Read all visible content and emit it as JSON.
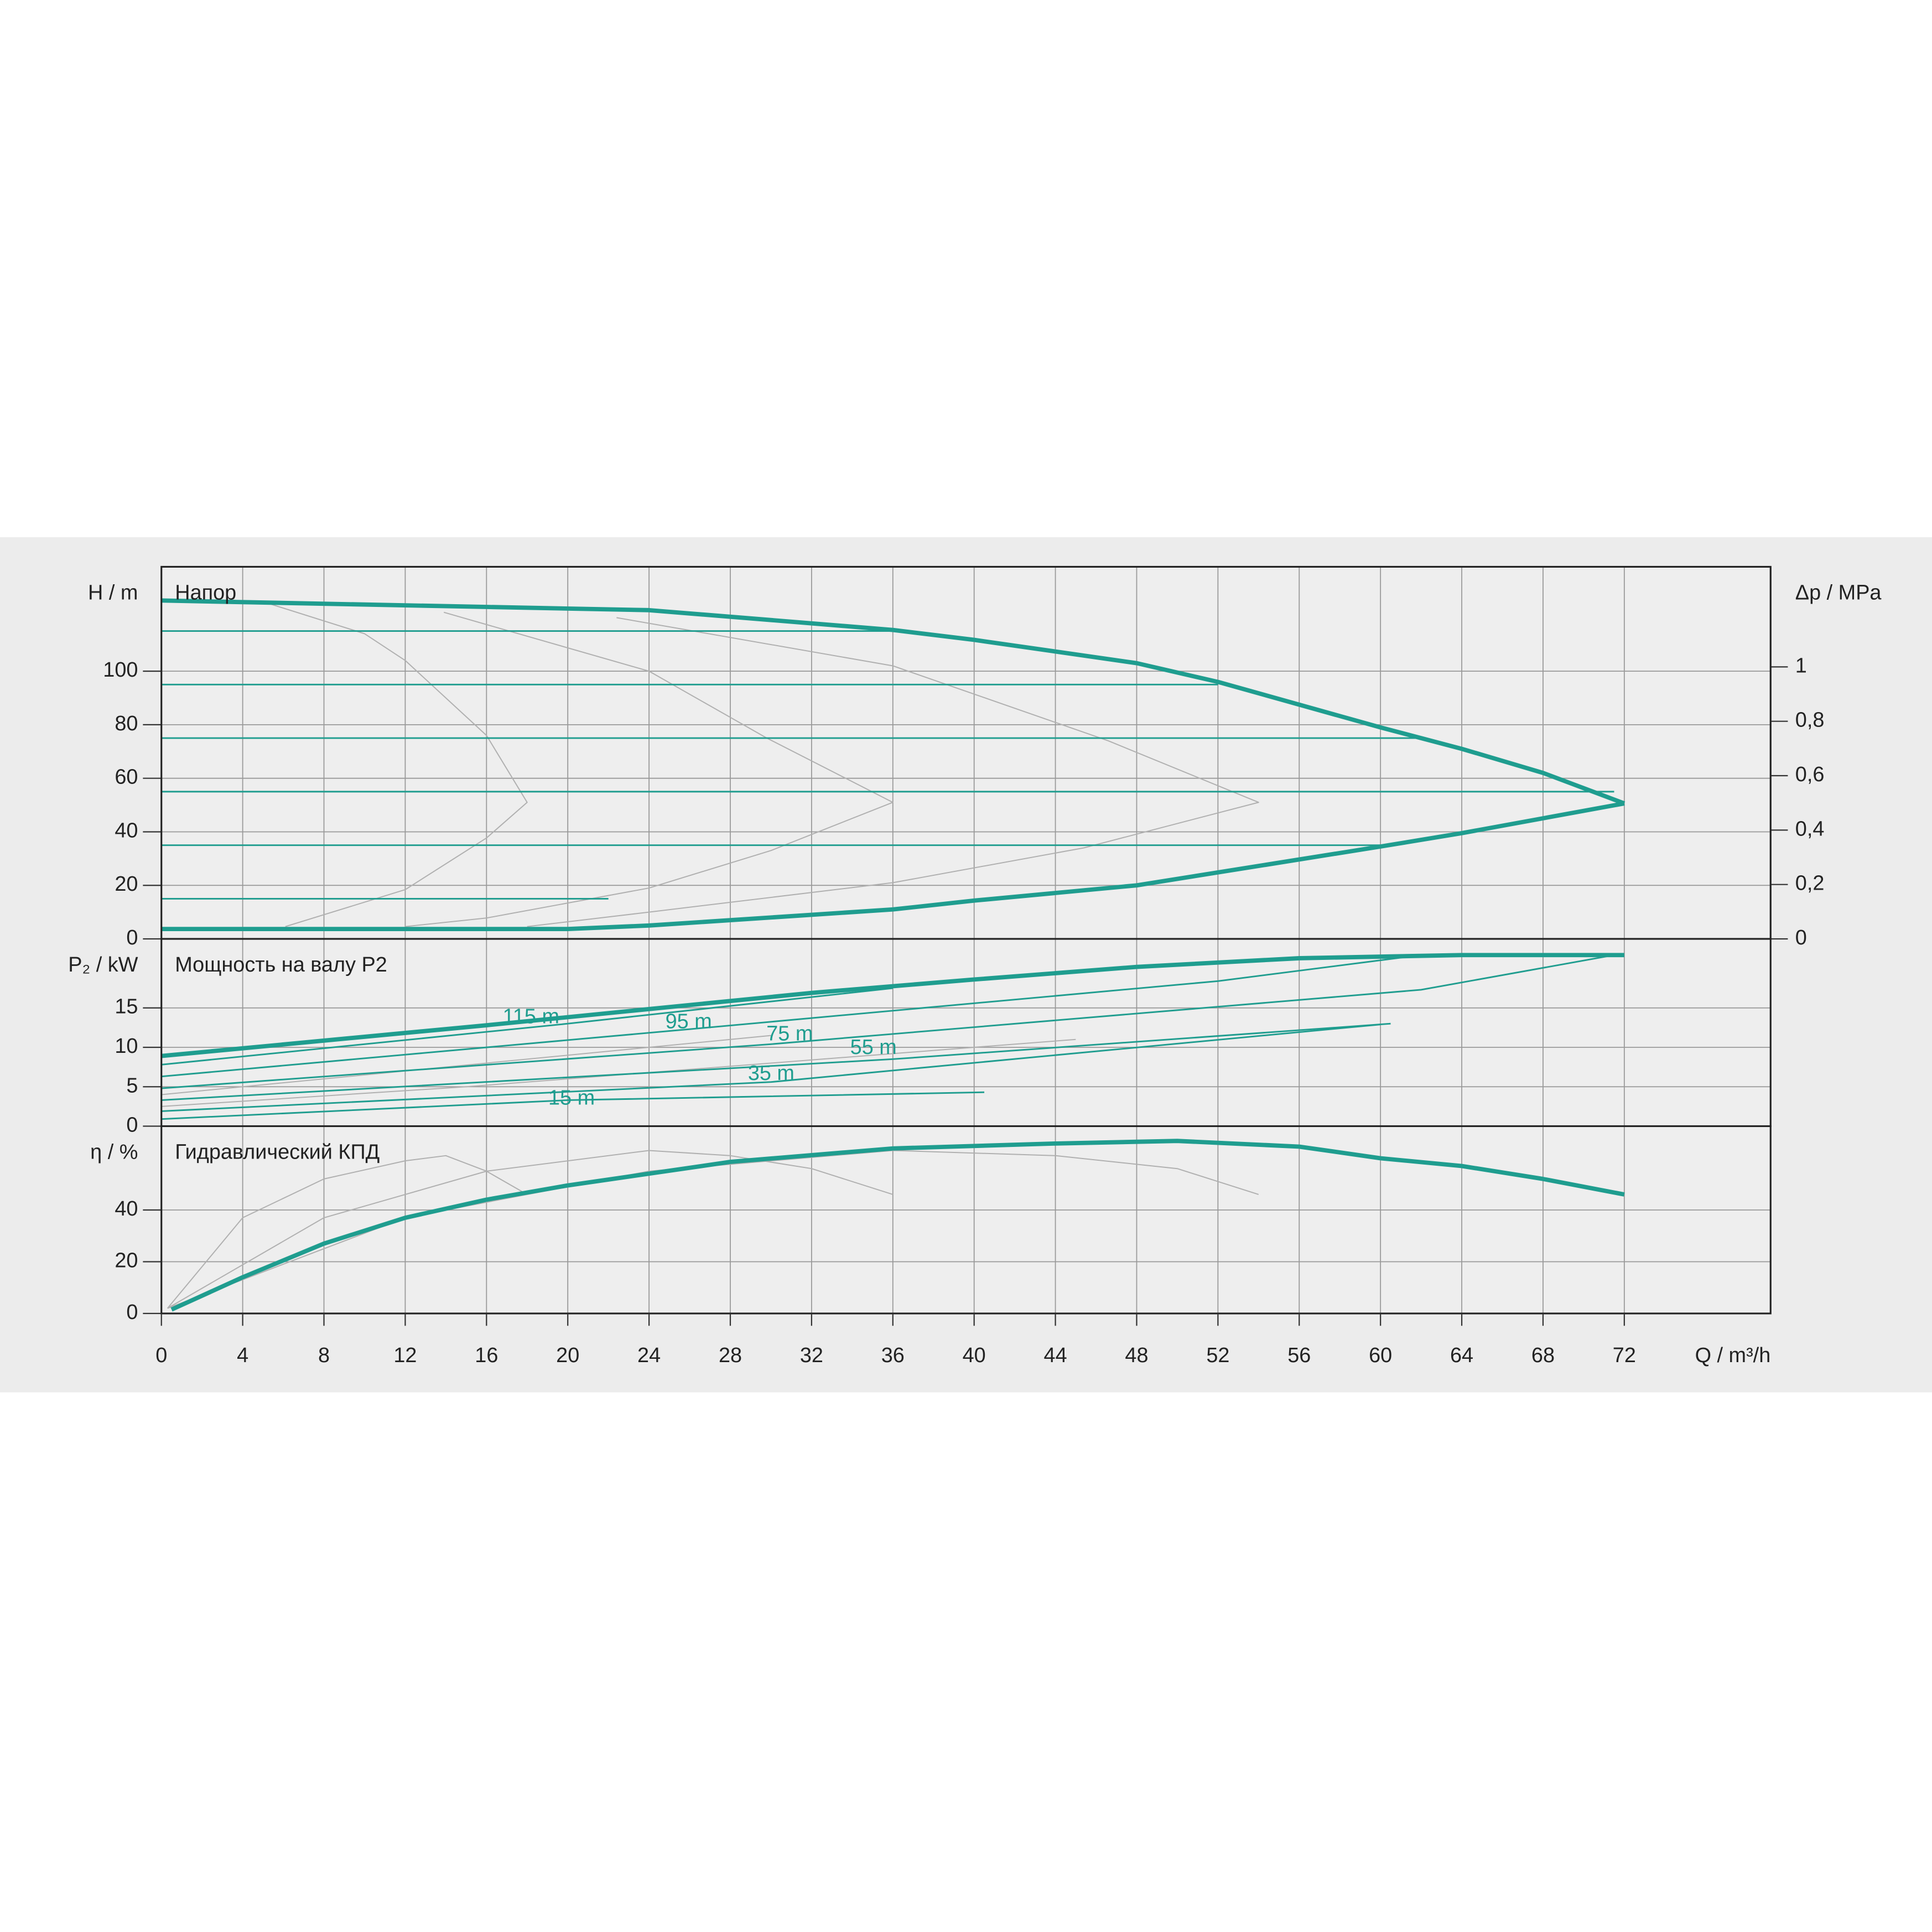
{
  "chart_data": [
    {
      "type": "line",
      "title": "Напор",
      "y_label": "H / m",
      "y2_label": "Δp / MPa",
      "xlim": [
        0,
        79.2
      ],
      "ylim": [
        0,
        139
      ],
      "yticks": [
        0,
        20,
        40,
        60,
        80,
        100
      ],
      "y2lim": [
        0,
        1.368
      ],
      "y2ticks": [
        0,
        {
          "value": 0.2,
          "label": "0,2"
        },
        {
          "value": 0.4,
          "label": "0,4"
        },
        {
          "value": 0.6,
          "label": "0,6"
        },
        {
          "value": 0.8,
          "label": "0,8"
        },
        1
      ],
      "grid": true,
      "series": [
        {
          "color": "#b0b0b0",
          "line_width": 0.9,
          "x": [
            5.4,
            10,
            12,
            16,
            18,
            16,
            12,
            6.1
          ],
          "values": [
            125,
            114,
            104,
            76,
            51,
            37.7,
            18.4,
            4.6
          ]
        },
        {
          "color": "#b0b0b0",
          "line_width": 0.9,
          "x": [
            13.9,
            24,
            29.8,
            36,
            30,
            24,
            16,
            12
          ],
          "values": [
            122,
            100,
            75,
            51,
            33,
            19,
            7.8,
            4.6
          ]
        },
        {
          "color": "#b0b0b0",
          "line_width": 0.9,
          "x": [
            22.4,
            36,
            46.6,
            54,
            45.4,
            36,
            24,
            18
          ],
          "values": [
            120,
            102,
            74,
            51,
            34,
            21,
            10,
            4.6
          ]
        },
        {
          "color": "#1f9d8f",
          "line_width": 1.3,
          "x": [
            0,
            36
          ],
          "values": [
            115,
            115
          ]
        },
        {
          "color": "#1f9d8f",
          "line_width": 1.3,
          "x": [
            0,
            52
          ],
          "values": [
            95,
            95
          ]
        },
        {
          "color": "#1f9d8f",
          "line_width": 1.3,
          "x": [
            0,
            62
          ],
          "values": [
            75,
            75
          ]
        },
        {
          "color": "#1f9d8f",
          "line_width": 1.3,
          "x": [
            0,
            71.5
          ],
          "values": [
            55,
            55
          ]
        },
        {
          "color": "#1f9d8f",
          "line_width": 1.3,
          "x": [
            0,
            60
          ],
          "values": [
            35,
            35
          ]
        },
        {
          "color": "#1f9d8f",
          "line_width": 1.3,
          "x": [
            0,
            22
          ],
          "values": [
            15,
            15
          ]
        },
        {
          "color": "#1f9d8f",
          "line_width": 3.5,
          "x": [
            0,
            16,
            24,
            36,
            40,
            48,
            52,
            60,
            64,
            68,
            72
          ],
          "values": [
            126.4,
            124,
            122.8,
            115.4,
            111.7,
            103,
            96,
            79,
            71,
            62,
            50.6
          ]
        },
        {
          "color": "#1f9d8f",
          "line_width": 3.5,
          "x": [
            0,
            20,
            24,
            36,
            40,
            48,
            60,
            64,
            72
          ],
          "values": [
            3.7,
            3.7,
            5,
            11,
            14.3,
            20,
            34.5,
            39.5,
            50.6
          ]
        }
      ]
    },
    {
      "type": "line",
      "title": "Мощность на валу P2",
      "y_label": "P₂ / kW",
      "xlim": [
        0,
        79.2
      ],
      "ylim": [
        0,
        23.75
      ],
      "yticks": [
        0,
        5,
        10,
        15
      ],
      "grid": true,
      "annotations": [
        "115 m",
        "95 m",
        "75 m",
        "55 m",
        "35 m",
        "15 m"
      ],
      "series": [
        {
          "color": "#b0b0b0",
          "line_width": 0.9,
          "x": [
            0,
            10,
            20,
            30
          ],
          "values": [
            4,
            6.5,
            9,
            11.5
          ]
        },
        {
          "color": "#b0b0b0",
          "line_width": 0.9,
          "x": [
            0,
            15,
            30,
            45
          ],
          "values": [
            2.5,
            5,
            8,
            11
          ]
        },
        {
          "color": "#1f9d8f",
          "line_width": 1.3,
          "x": [
            0,
            20,
            36
          ],
          "values": [
            7.8,
            13,
            17.5
          ]
        },
        {
          "color": "#1f9d8f",
          "line_width": 1.3,
          "x": [
            0,
            26,
            52,
            62
          ],
          "values": [
            6.3,
            12.3,
            18.4,
            21.7
          ]
        },
        {
          "color": "#1f9d8f",
          "line_width": 1.3,
          "x": [
            0,
            30,
            62,
            71.5
          ],
          "values": [
            4.8,
            10.4,
            17.3,
            21.7
          ]
        },
        {
          "color": "#1f9d8f",
          "line_width": 1.3,
          "x": [
            0,
            36,
            60.5
          ],
          "values": [
            3.3,
            8.5,
            13
          ]
        },
        {
          "color": "#1f9d8f",
          "line_width": 1.3,
          "x": [
            0,
            30,
            60
          ],
          "values": [
            1.9,
            5.6,
            12.9
          ]
        },
        {
          "color": "#1f9d8f",
          "line_width": 1.3,
          "x": [
            0,
            20,
            40.5
          ],
          "values": [
            0.9,
            3.3,
            4.3
          ]
        },
        {
          "color": "#1f9d8f",
          "line_width": 3.5,
          "x": [
            0,
            16,
            32,
            40,
            48,
            56,
            64,
            72
          ],
          "values": [
            8.9,
            12.8,
            16.9,
            18.6,
            20.2,
            21.3,
            21.7,
            21.7
          ]
        }
      ]
    },
    {
      "type": "line",
      "title": "Гидравлический КПД",
      "y_label": "η / %",
      "x_label": "Q / m³/h",
      "xlim": [
        0,
        79.2
      ],
      "xticks": [
        0,
        4,
        8,
        12,
        16,
        20,
        24,
        28,
        32,
        36,
        40,
        44,
        48,
        52,
        56,
        60,
        64,
        68,
        72
      ],
      "ylim": [
        0,
        72.4
      ],
      "yticks": [
        0,
        20,
        40
      ],
      "grid": true,
      "series": [
        {
          "color": "#b0b0b0",
          "line_width": 0.9,
          "x": [
            0.3,
            4,
            8,
            12,
            14,
            16,
            18
          ],
          "values": [
            2,
            37,
            52,
            59,
            61,
            55,
            46
          ]
        },
        {
          "color": "#b0b0b0",
          "line_width": 0.9,
          "x": [
            0.3,
            8,
            16,
            24,
            28,
            32,
            36
          ],
          "values": [
            2,
            37,
            55,
            63,
            61,
            56,
            46
          ]
        },
        {
          "color": "#b0b0b0",
          "line_width": 0.9,
          "x": [
            0.3,
            12,
            24,
            36,
            44,
            50,
            54
          ],
          "values": [
            2,
            37,
            55,
            63,
            61,
            56,
            46
          ]
        },
        {
          "color": "#1f9d8f",
          "line_width": 3.5,
          "x": [
            0.5,
            4,
            8,
            12,
            16,
            20,
            28,
            36,
            44,
            50,
            56,
            60,
            64,
            68,
            72
          ],
          "values": [
            1.5,
            14,
            27,
            37,
            44,
            49.5,
            58.6,
            63.8,
            65.7,
            66.7,
            64.5,
            60,
            57,
            52,
            46
          ]
        }
      ]
    }
  ]
}
